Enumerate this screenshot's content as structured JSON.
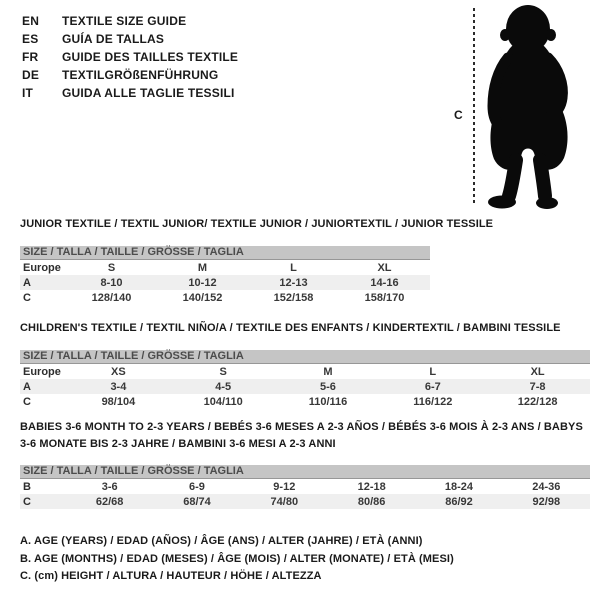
{
  "colors": {
    "bar_bg": "#c5c5c5",
    "bar_border": "#979797",
    "row_alt": "#efefef",
    "text": "#1a1a1a",
    "silhouette": "#0a0a0a"
  },
  "header": {
    "languages": [
      {
        "code": "EN",
        "title": "TEXTILE SIZE GUIDE"
      },
      {
        "code": "ES",
        "title": "GUÍA DE TALLAS"
      },
      {
        "code": "FR",
        "title": "GUIDE DES TAILLES TEXTILE"
      },
      {
        "code": "DE",
        "title": "TEXTILGRÖßENFÜHRUNG"
      },
      {
        "code": "IT",
        "title": "GUIDA ALLE TAGLIE TESSILI"
      }
    ]
  },
  "figure": {
    "measure_label": "C"
  },
  "tables": [
    {
      "title": "JUNIOR TEXTILE / TEXTIL JUNIOR/ TEXTILE JUNIOR / JUNIORTEXTIL / JUNIOR TESSILE",
      "size_header": "SIZE / TALLA / TAILLE / GRÖSSE / TAGLIA",
      "rows": [
        {
          "label": "Europe",
          "values": [
            "S",
            "M",
            "L",
            "XL"
          ]
        },
        {
          "label": "A",
          "values": [
            "8-10",
            "10-12",
            "12-13",
            "14-16"
          ]
        },
        {
          "label": "C",
          "values": [
            "128/140",
            "140/152",
            "152/158",
            "158/170"
          ]
        }
      ]
    },
    {
      "title": "CHILDREN'S TEXTILE / TEXTIL NIÑO/A / TEXTILE DES ENFANTS / KINDERTEXTIL / BAMBINI TESSILE",
      "size_header": "SIZE / TALLA / TAILLE / GRÖSSE / TAGLIA",
      "rows": [
        {
          "label": "Europe",
          "values": [
            "XS",
            "S",
            "M",
            "L",
            "XL"
          ]
        },
        {
          "label": "A",
          "values": [
            "3-4",
            "4-5",
            "5-6",
            "6-7",
            "7-8"
          ]
        },
        {
          "label": "C",
          "values": [
            "98/104",
            "104/110",
            "110/116",
            "116/122",
            "122/128"
          ]
        }
      ]
    },
    {
      "title": "BABIES 3-6 MONTH TO 2-3 YEARS / BEBÉS 3-6 MESES A 2-3 AÑOS / BÉBÉS 3-6 MOIS À 2-3 ANS / BABYS 3-6 MONATE BIS 2-3 JAHRE / BAMBINI 3-6 MESI A 2-3 ANNI",
      "size_header": "SIZE / TALLA / TAILLE / GRÖSSE / TAGLIA",
      "rows": [
        {
          "label": "B",
          "values": [
            "3-6",
            "6-9",
            "9-12",
            "12-18",
            "18-24",
            "24-36"
          ]
        },
        {
          "label": "C",
          "values": [
            "62/68",
            "68/74",
            "74/80",
            "80/86",
            "86/92",
            "92/98"
          ]
        }
      ]
    }
  ],
  "footnotes": [
    "A. AGE (YEARS) / EDAD (AÑOS) / ÂGE (ANS) / ALTER (JAHRE) / ETÀ (ANNI)",
    "B. AGE (MONTHS) / EDAD (MESES) / ÂGE (MOIS) / ALTER (MONATE) / ETÀ (MESI)",
    "C. (cm) HEIGHT / ALTURA / HAUTEUR / HÖHE / ALTEZZA"
  ]
}
